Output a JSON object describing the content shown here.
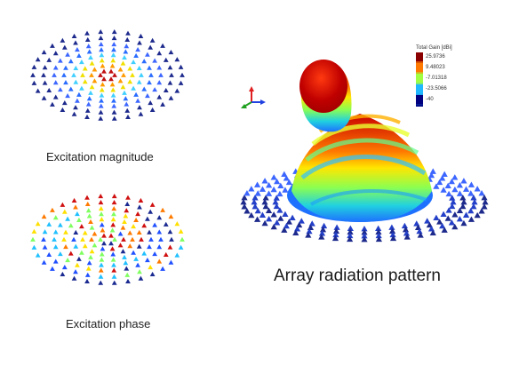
{
  "captions": {
    "magnitude": "Excitation magnitude",
    "phase": "Excitation phase",
    "pattern": "Array radiation pattern"
  },
  "legend": {
    "title": "Total Gain [dBi]",
    "entries": [
      {
        "label": "25.9736",
        "color": "#8b0000"
      },
      {
        "label": "9.48023",
        "color": "#ff7a00"
      },
      {
        "label": "-7.01318",
        "color": "#a0ff40"
      },
      {
        "label": "-23.5066",
        "color": "#20b8ff"
      },
      {
        "label": "-40",
        "color": "#000080"
      }
    ]
  },
  "colors": {
    "array_element_dark": "#1d2a8c",
    "array_element_light": "#3c66ff",
    "axis_x": "#e02020",
    "axis_y": "#20a020",
    "axis_z": "#2040e0"
  },
  "icons": {
    "coordinate_axes": "xyz-axes-icon"
  }
}
